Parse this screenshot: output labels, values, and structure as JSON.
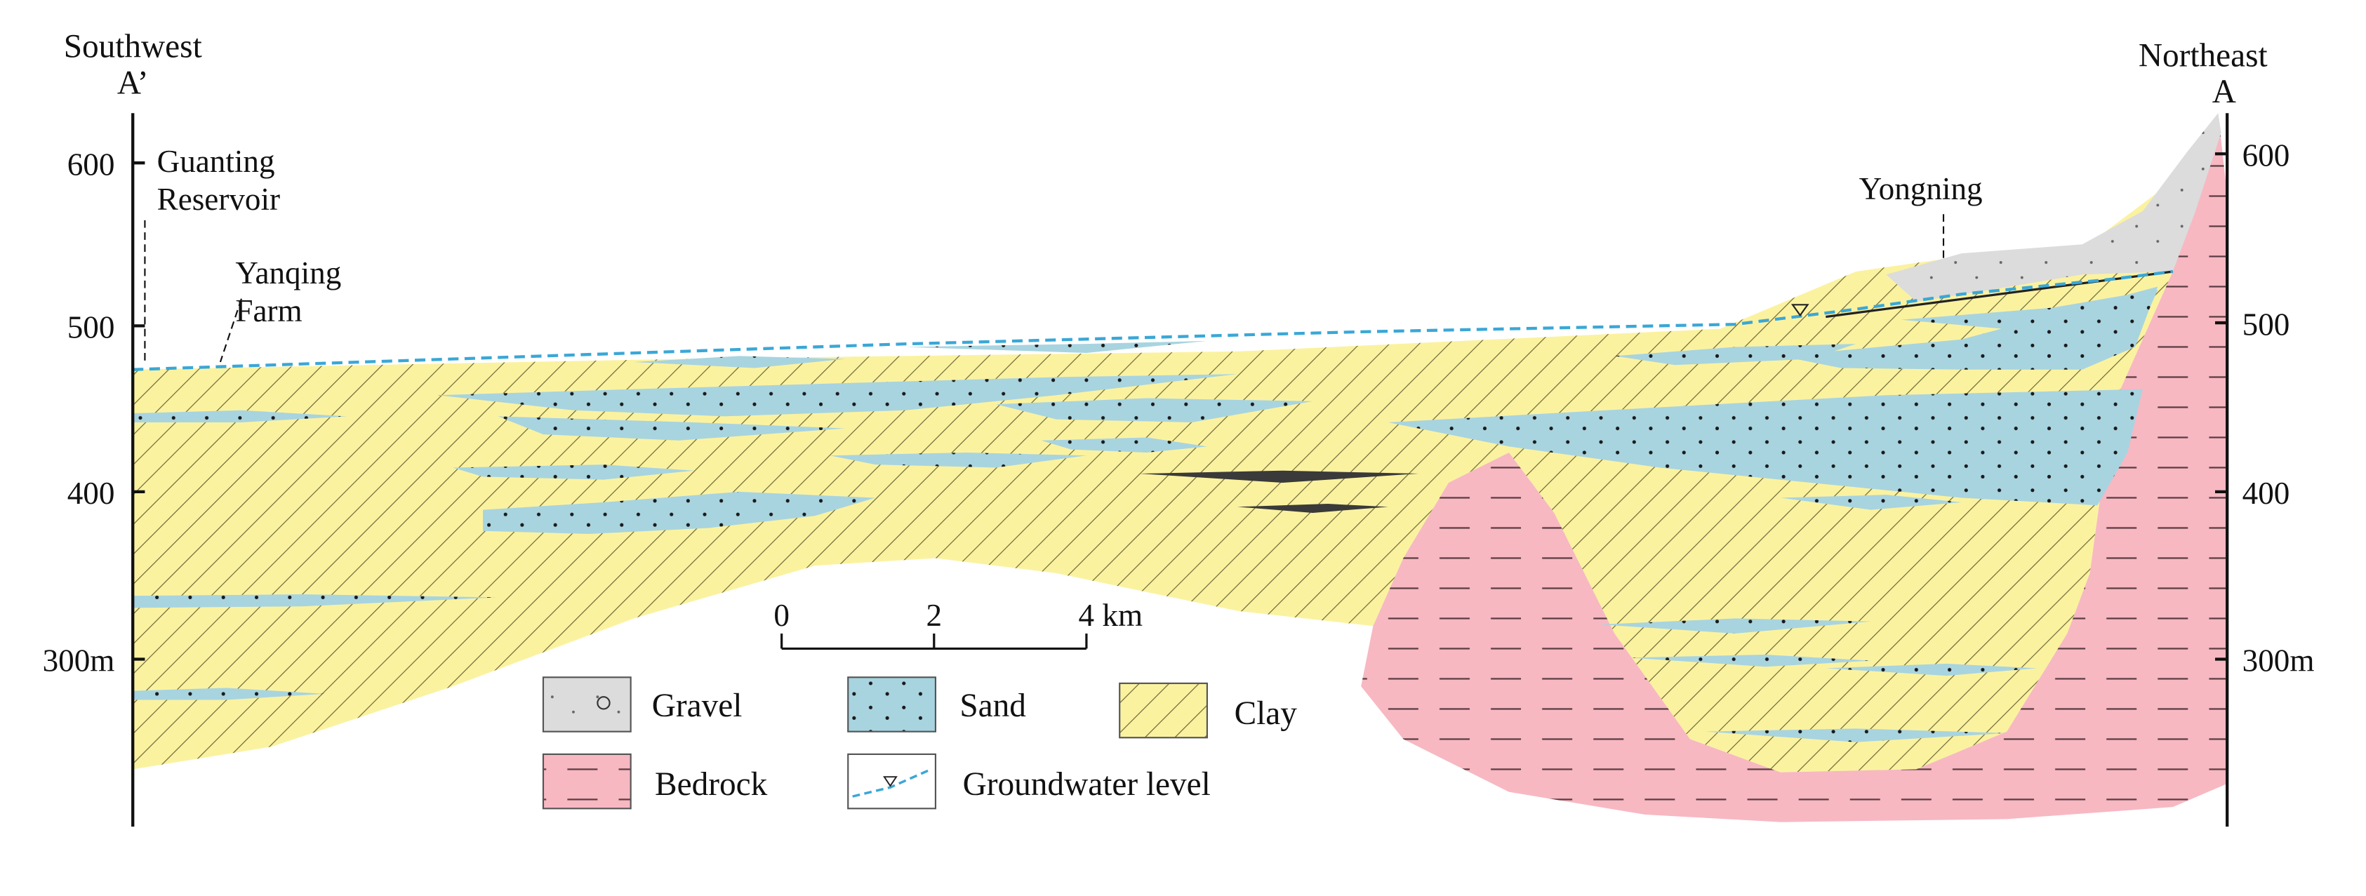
{
  "diagram": {
    "left_direction": "Southwest",
    "left_point": "A’",
    "right_direction": "Northeast",
    "right_point": "A",
    "left_axis_ticks": [
      "600",
      "500",
      "400",
      "300m"
    ],
    "right_axis_ticks": [
      "600",
      "500",
      "400",
      "300m"
    ],
    "place_labels": {
      "guanting_line1": "Guanting",
      "guanting_line2": "Reservoir",
      "yanqing_line1": "Yanqing",
      "yanqing_line2": "Farm",
      "yongning": "Yongning"
    },
    "scale_bar": {
      "tick_labels": [
        "0",
        "2",
        "4 km"
      ]
    },
    "legend": [
      {
        "label": "Gravel",
        "color": "#dcdcdc"
      },
      {
        "label": "Sand",
        "color": "#a8d4e0"
      },
      {
        "label": "Clay",
        "color": "#fbf2a0"
      },
      {
        "label": "Bedrock",
        "color": "#f7b8c2"
      },
      {
        "label": "Groundwater level",
        "color": "#3aa7d6"
      }
    ]
  }
}
